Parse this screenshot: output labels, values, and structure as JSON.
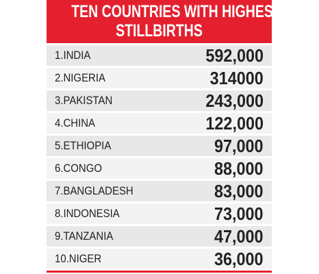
{
  "header": {
    "title": [
      "TEN COUNTRIES WITH HIGHEST",
      "STILLBIRTHS"
    ]
  },
  "table": {
    "rows": [
      [
        "1.INDIA",
        "592,000"
      ],
      [
        "2.NIGERIA",
        "314000"
      ],
      [
        "3.PAKISTAN",
        "243,000"
      ],
      [
        "4.CHINA",
        "122,000"
      ],
      [
        "5.ETHIOPIA",
        "97,000"
      ],
      [
        "6.CONGO",
        "88,000"
      ],
      [
        "7.BANGLADESH",
        "83,000"
      ],
      [
        "8.INDONESIA",
        "73,000"
      ],
      [
        "9.TANZANIA",
        "47,000"
      ],
      [
        "10.NIGER",
        "36,000"
      ]
    ]
  }
}
